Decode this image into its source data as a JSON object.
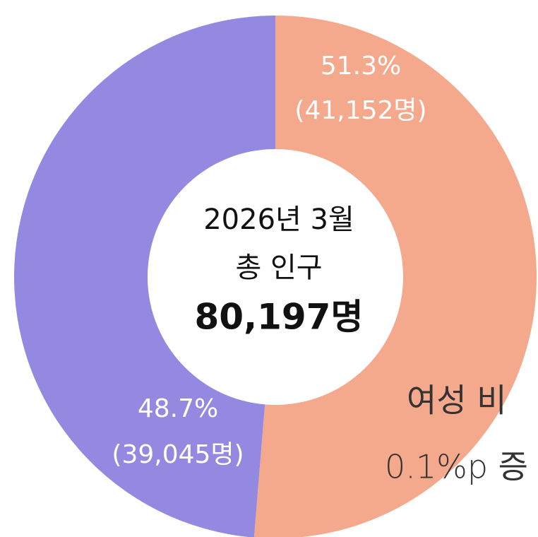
{
  "chart_data": {
    "type": "pie",
    "categories": [
      null,
      null
    ],
    "values": [
      51.3,
      48.7
    ],
    "value_labels": [
      "51.3%",
      "48.7%"
    ],
    "count_labels": [
      "(41,152명)",
      "(39,045명)"
    ],
    "colors": [
      "#f5a98c",
      "#9489e0"
    ],
    "center_text": [
      "2026년 3월",
      "총 인구",
      "80,197명"
    ],
    "annotation": [
      "여성 비",
      "0.1%p 증"
    ]
  }
}
